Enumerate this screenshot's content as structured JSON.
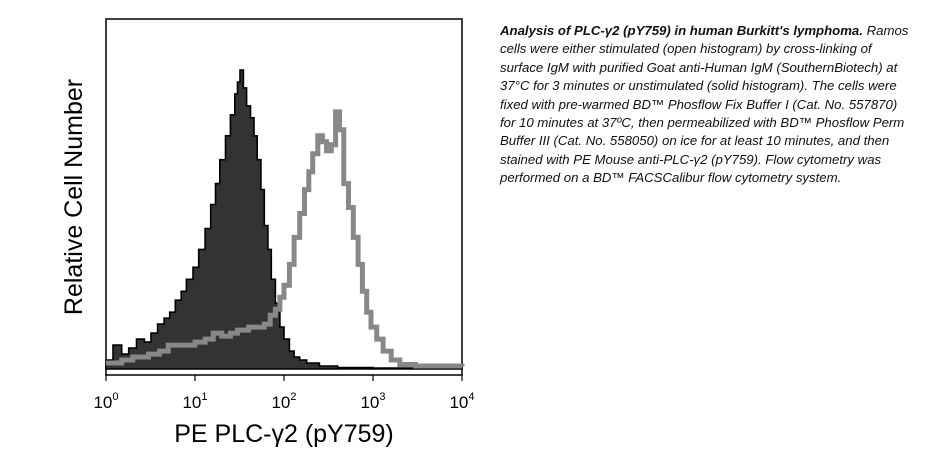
{
  "chart_data": {
    "type": "area",
    "ylabel": "Relative Cell Number",
    "xlabel": "PE PLC-γ2 (pY759)",
    "x_scale": "log",
    "xlim": [
      1,
      10000
    ],
    "ylim": [
      0,
      100
    ],
    "x_ticks": [
      {
        "base": "10",
        "exp": "0",
        "value": 1
      },
      {
        "base": "10",
        "exp": "1",
        "value": 10
      },
      {
        "base": "10",
        "exp": "2",
        "value": 100
      },
      {
        "base": "10",
        "exp": "3",
        "value": 1000
      },
      {
        "base": "10",
        "exp": "4",
        "value": 10000
      }
    ],
    "series": [
      {
        "style": "solid",
        "color": "#333333",
        "points": [
          [
            1.0,
            3
          ],
          [
            1.2,
            8
          ],
          [
            1.5,
            5
          ],
          [
            1.8,
            7
          ],
          [
            2.2,
            10
          ],
          [
            2.7,
            9
          ],
          [
            3.2,
            12
          ],
          [
            3.8,
            15
          ],
          [
            4.5,
            17
          ],
          [
            5.2,
            19
          ],
          [
            6.0,
            23
          ],
          [
            7.0,
            26
          ],
          [
            8.0,
            30
          ],
          [
            9.5,
            34
          ],
          [
            11,
            40
          ],
          [
            13,
            47
          ],
          [
            15,
            55
          ],
          [
            17,
            62
          ],
          [
            19,
            70
          ],
          [
            22,
            78
          ],
          [
            25,
            85
          ],
          [
            28,
            92
          ],
          [
            30,
            96
          ],
          [
            32,
            100
          ],
          [
            35,
            94
          ],
          [
            38,
            88
          ],
          [
            42,
            84
          ],
          [
            46,
            78
          ],
          [
            50,
            70
          ],
          [
            55,
            60
          ],
          [
            60,
            48
          ],
          [
            66,
            40
          ],
          [
            72,
            30
          ],
          [
            80,
            22
          ],
          [
            90,
            14
          ],
          [
            100,
            10
          ],
          [
            115,
            6
          ],
          [
            130,
            4
          ],
          [
            150,
            3
          ],
          [
            180,
            2
          ],
          [
            250,
            1
          ],
          [
            400,
            0.5
          ],
          [
            1000,
            0.3
          ],
          [
            10000,
            0
          ]
        ]
      },
      {
        "style": "open",
        "color": "#888888",
        "points": [
          [
            1.0,
            2
          ],
          [
            1.5,
            3
          ],
          [
            2.0,
            4
          ],
          [
            3.0,
            5
          ],
          [
            4.0,
            6
          ],
          [
            5.0,
            8
          ],
          [
            7.0,
            8
          ],
          [
            10,
            9
          ],
          [
            13,
            10
          ],
          [
            16,
            12
          ],
          [
            20,
            11
          ],
          [
            25,
            12
          ],
          [
            30,
            13
          ],
          [
            40,
            14
          ],
          [
            50,
            14
          ],
          [
            60,
            15
          ],
          [
            70,
            18
          ],
          [
            80,
            20
          ],
          [
            90,
            24
          ],
          [
            100,
            28
          ],
          [
            115,
            35
          ],
          [
            130,
            44
          ],
          [
            150,
            52
          ],
          [
            170,
            60
          ],
          [
            190,
            66
          ],
          [
            210,
            72
          ],
          [
            240,
            78
          ],
          [
            270,
            76
          ],
          [
            300,
            73
          ],
          [
            340,
            75
          ],
          [
            380,
            86
          ],
          [
            420,
            80
          ],
          [
            470,
            62
          ],
          [
            530,
            54
          ],
          [
            600,
            44
          ],
          [
            680,
            35
          ],
          [
            760,
            26
          ],
          [
            850,
            19
          ],
          [
            950,
            14
          ],
          [
            1100,
            10
          ],
          [
            1300,
            6
          ],
          [
            1600,
            3
          ],
          [
            2000,
            1.5
          ],
          [
            3000,
            1
          ],
          [
            10000,
            0.8
          ]
        ]
      }
    ]
  },
  "caption": {
    "title": "Analysis of PLC-γ2 (pY759) in human Burkitt's lymphoma.",
    "body": "Ramos cells were either stimulated (open histogram) by cross-linking of surface IgM with purified Goat anti-Human IgM (SouthernBiotech) at 37°C for 3 minutes or unstimulated (solid histogram). The cells were fixed with pre-warmed BD™ Phosflow Fix Buffer I (Cat. No. 557870) for 10 minutes at 37ºC, then permeabilized with BD™ Phosflow Perm Buffer III (Cat. No. 558050) on ice for at least 10 minutes, and then stained with PE Mouse anti-PLC-γ2 (pY759). Flow cytometry was performed on a BD™ FACSCalibur flow cytometry system."
  }
}
